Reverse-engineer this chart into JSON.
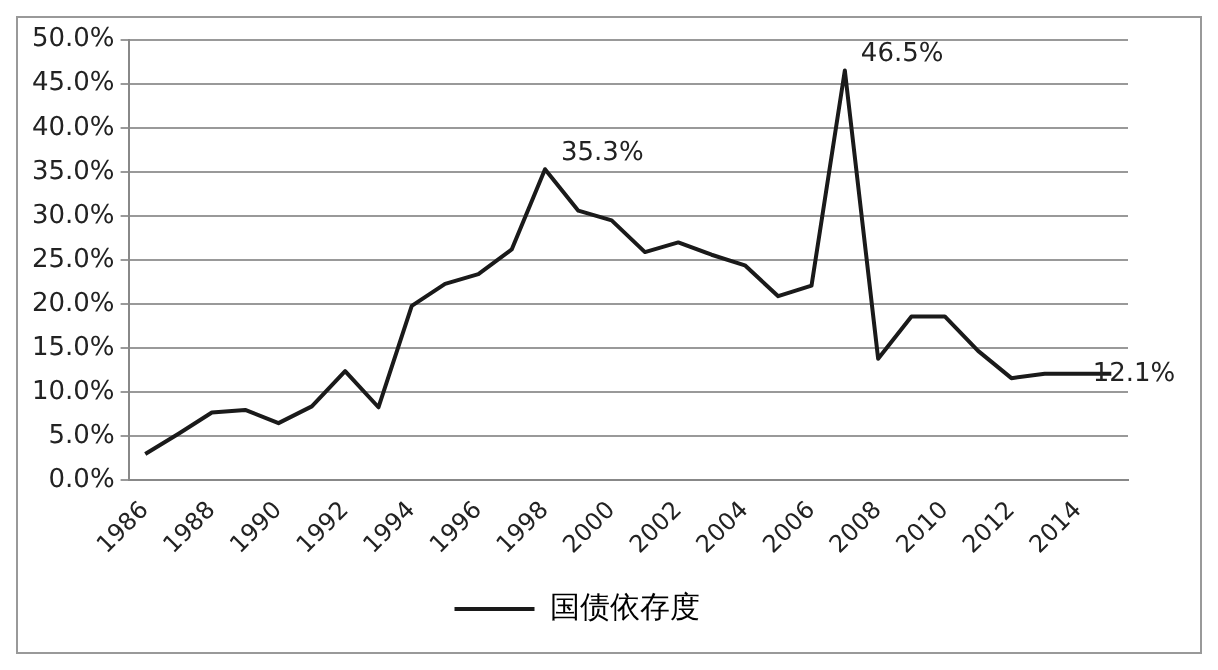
{
  "chart_data": {
    "type": "line",
    "categories": [
      "1986",
      null,
      "1988",
      null,
      "1990",
      null,
      "1992",
      null,
      "1994",
      null,
      "1996",
      null,
      "1998",
      null,
      "2000",
      null,
      "2002",
      null,
      "2004",
      null,
      "2006",
      null,
      "2008",
      null,
      "2010",
      null,
      "2012",
      null,
      "2014",
      null
    ],
    "series": [
      {
        "name": "国债依存度",
        "color": "#1a1a1a",
        "values": [
          3.0,
          5.3,
          7.7,
          8.0,
          6.5,
          8.4,
          12.4,
          8.3,
          19.8,
          22.3,
          23.4,
          26.2,
          35.3,
          30.6,
          29.5,
          25.9,
          27.0,
          25.6,
          24.4,
          20.9,
          22.1,
          46.5,
          13.8,
          18.6,
          18.6,
          14.7,
          11.6,
          12.1,
          12.1,
          12.1
        ],
        "value_labels": [
          null,
          null,
          null,
          null,
          null,
          null,
          null,
          null,
          null,
          null,
          null,
          null,
          "35.3%",
          null,
          null,
          null,
          null,
          null,
          null,
          null,
          null,
          "46.5%",
          null,
          null,
          null,
          null,
          null,
          null,
          null,
          "12.1%"
        ]
      }
    ],
    "ylim": [
      0,
      50
    ],
    "yticks": [
      {
        "value": 0,
        "label": "0.0%"
      },
      {
        "value": 5,
        "label": "5.0%"
      },
      {
        "value": 10,
        "label": "10.0%"
      },
      {
        "value": 15,
        "label": "15.0%"
      },
      {
        "value": 20,
        "label": "20.0%"
      },
      {
        "value": 25,
        "label": "25.0%"
      },
      {
        "value": 30,
        "label": "30.0%"
      },
      {
        "value": 35,
        "label": "35.0%"
      },
      {
        "value": 40,
        "label": "40.0%"
      },
      {
        "value": 45,
        "label": "45.0%"
      },
      {
        "value": 50,
        "label": "50.0%"
      }
    ],
    "grid": "y",
    "legend": "bottom",
    "marker": "none",
    "line_style": "solid"
  }
}
